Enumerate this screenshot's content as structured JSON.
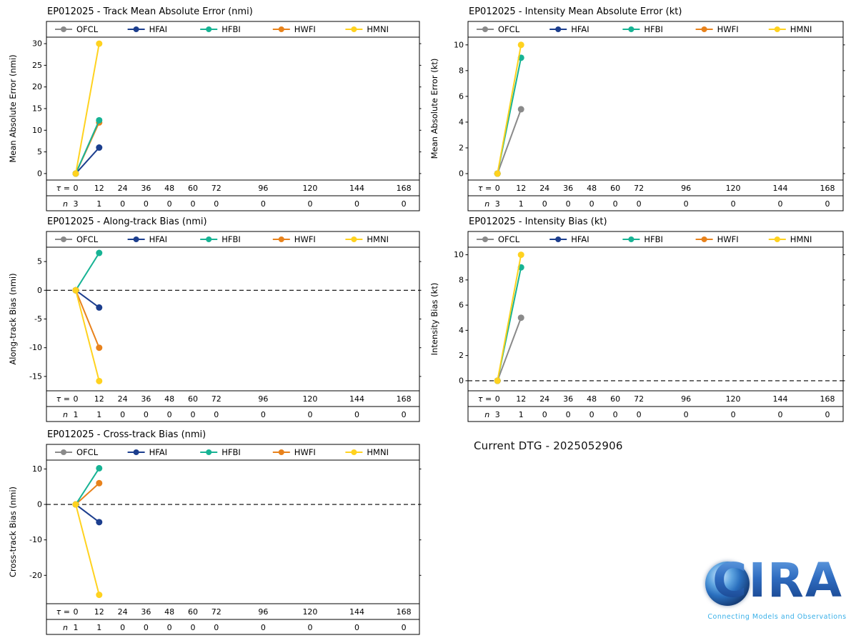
{
  "page": {
    "background": "#ffffff"
  },
  "dtg": {
    "label": "Current DTG - 2025052906"
  },
  "logo": {
    "text": "CIRA",
    "tagline": "Connecting Models and Observations"
  },
  "legend": [
    {
      "label": "OFCL",
      "color": "#8a8a8a"
    },
    {
      "label": "HFAI",
      "color": "#1c3e8e"
    },
    {
      "label": "HFBI",
      "color": "#17b394"
    },
    {
      "label": "HWFI",
      "color": "#e8821c"
    },
    {
      "label": "HMNI",
      "color": "#ffd21f"
    }
  ],
  "x_axis": {
    "ticks": [
      0,
      12,
      24,
      36,
      48,
      60,
      72,
      96,
      120,
      144,
      168
    ],
    "lim": [
      -15,
      176
    ],
    "tau_prefix": "τ =",
    "n_label": "n"
  },
  "chart_data": [
    {
      "id": "track-mae",
      "type": "line",
      "title": "EP012025 - Track Mean Absolute Error (nmi)",
      "ylabel": "Mean Absolute Error (nmi)",
      "ylim": [
        -1.5,
        31.5
      ],
      "yticks": [
        0,
        5,
        10,
        15,
        20,
        25,
        30
      ],
      "zero_line": false,
      "series": [
        {
          "name": "OFCL",
          "color": "#8a8a8a",
          "points": [
            [
              0,
              0
            ]
          ]
        },
        {
          "name": "HFAI",
          "color": "#1c3e8e",
          "points": [
            [
              0,
              0
            ],
            [
              12,
              6
            ]
          ]
        },
        {
          "name": "HWFI",
          "color": "#e8821c",
          "points": [
            [
              0,
              0
            ],
            [
              12,
              11.8
            ]
          ]
        },
        {
          "name": "HFBI",
          "color": "#17b394",
          "points": [
            [
              0,
              0
            ],
            [
              12,
              12.3
            ]
          ]
        },
        {
          "name": "HMNI",
          "color": "#ffd21f",
          "points": [
            [
              0,
              0
            ],
            [
              12,
              30
            ]
          ]
        }
      ],
      "n_values": [
        3,
        1,
        0,
        0,
        0,
        0,
        0,
        0,
        0,
        0,
        0
      ]
    },
    {
      "id": "intensity-mae",
      "type": "line",
      "title": "EP012025 - Intensity Mean Absolute Error (kt)",
      "ylabel": "Mean Absolute Error (kt)",
      "ylim": [
        -0.5,
        10.6
      ],
      "yticks": [
        0,
        2,
        4,
        6,
        8,
        10
      ],
      "zero_line": false,
      "series": [
        {
          "name": "OFCL",
          "color": "#8a8a8a",
          "points": [
            [
              0,
              0
            ],
            [
              12,
              5
            ]
          ]
        },
        {
          "name": "HFAI",
          "color": "#1c3e8e",
          "points": [
            [
              0,
              0
            ]
          ]
        },
        {
          "name": "HWFI",
          "color": "#e8821c",
          "points": [
            [
              0,
              0
            ]
          ]
        },
        {
          "name": "HFBI",
          "color": "#17b394",
          "points": [
            [
              0,
              0
            ],
            [
              12,
              9
            ]
          ]
        },
        {
          "name": "HMNI",
          "color": "#ffd21f",
          "points": [
            [
              0,
              0
            ],
            [
              12,
              10
            ]
          ]
        }
      ],
      "n_values": [
        3,
        1,
        0,
        0,
        0,
        0,
        0,
        0,
        0,
        0,
        0
      ]
    },
    {
      "id": "along-track-bias",
      "type": "line",
      "title": "EP012025 - Along-track Bias (nmi)",
      "ylabel": "Along-track Bias (nmi)",
      "ylim": [
        -17.5,
        7.5
      ],
      "yticks": [
        -15,
        -10,
        -5,
        0,
        5
      ],
      "zero_line": true,
      "series": [
        {
          "name": "OFCL",
          "color": "#8a8a8a",
          "points": [
            [
              0,
              0
            ]
          ]
        },
        {
          "name": "HFAI",
          "color": "#1c3e8e",
          "points": [
            [
              0,
              0
            ],
            [
              12,
              -3
            ]
          ]
        },
        {
          "name": "HFBI",
          "color": "#17b394",
          "points": [
            [
              0,
              0
            ],
            [
              12,
              6.5
            ]
          ]
        },
        {
          "name": "HWFI",
          "color": "#e8821c",
          "points": [
            [
              0,
              0
            ],
            [
              12,
              -10
            ]
          ]
        },
        {
          "name": "HMNI",
          "color": "#ffd21f",
          "points": [
            [
              0,
              0
            ],
            [
              12,
              -15.8
            ]
          ]
        }
      ],
      "n_values": [
        1,
        1,
        0,
        0,
        0,
        0,
        0,
        0,
        0,
        0,
        0
      ]
    },
    {
      "id": "intensity-bias",
      "type": "line",
      "title": "EP012025 - Intensity Bias (kt)",
      "ylabel": "Intensity Bias (kt)",
      "ylim": [
        -0.8,
        10.6
      ],
      "yticks": [
        0,
        2,
        4,
        6,
        8,
        10
      ],
      "zero_line": true,
      "series": [
        {
          "name": "OFCL",
          "color": "#8a8a8a",
          "points": [
            [
              0,
              0
            ],
            [
              12,
              5
            ]
          ]
        },
        {
          "name": "HFAI",
          "color": "#1c3e8e",
          "points": [
            [
              0,
              0
            ]
          ]
        },
        {
          "name": "HWFI",
          "color": "#e8821c",
          "points": [
            [
              0,
              0
            ]
          ]
        },
        {
          "name": "HFBI",
          "color": "#17b394",
          "points": [
            [
              0,
              0
            ],
            [
              12,
              9
            ]
          ]
        },
        {
          "name": "HMNI",
          "color": "#ffd21f",
          "points": [
            [
              0,
              0
            ],
            [
              12,
              10
            ]
          ]
        }
      ],
      "n_values": [
        3,
        1,
        0,
        0,
        0,
        0,
        0,
        0,
        0,
        0,
        0
      ]
    },
    {
      "id": "cross-track-bias",
      "type": "line",
      "title": "EP012025 - Cross-track Bias (nmi)",
      "ylabel": "Cross-track Bias (nmi)",
      "ylim": [
        -28,
        12.5
      ],
      "yticks": [
        -20,
        -10,
        0,
        10
      ],
      "zero_line": true,
      "series": [
        {
          "name": "OFCL",
          "color": "#8a8a8a",
          "points": [
            [
              0,
              0
            ]
          ]
        },
        {
          "name": "HFAI",
          "color": "#1c3e8e",
          "points": [
            [
              0,
              0
            ],
            [
              12,
              -5
            ]
          ]
        },
        {
          "name": "HWFI",
          "color": "#e8821c",
          "points": [
            [
              0,
              0
            ],
            [
              12,
              6
            ]
          ]
        },
        {
          "name": "HFBI",
          "color": "#17b394",
          "points": [
            [
              0,
              0
            ],
            [
              12,
              10.2
            ]
          ]
        },
        {
          "name": "HMNI",
          "color": "#ffd21f",
          "points": [
            [
              0,
              0
            ],
            [
              12,
              -25.5
            ]
          ]
        }
      ],
      "n_values": [
        1,
        1,
        0,
        0,
        0,
        0,
        0,
        0,
        0,
        0,
        0
      ]
    }
  ]
}
